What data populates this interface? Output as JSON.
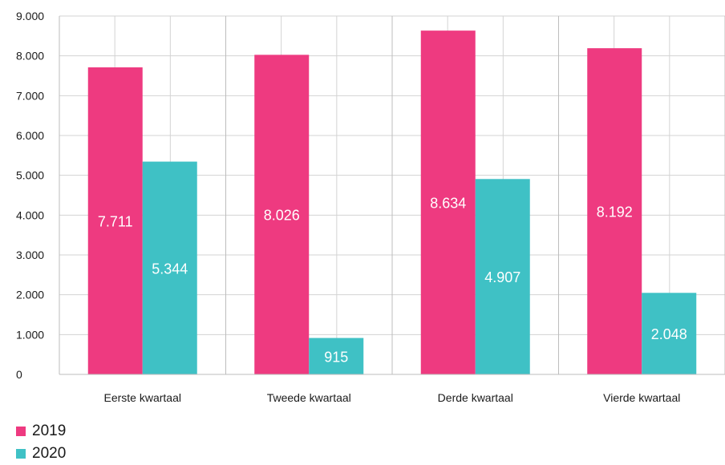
{
  "chart_data": {
    "type": "bar",
    "categories": [
      "Eerste kwartaal",
      "Tweede kwartaal",
      "Derde kwartaal",
      "Vierde kwartaal"
    ],
    "series": [
      {
        "name": "2019",
        "values": [
          7711,
          8026,
          8634,
          8192
        ],
        "labels": [
          "7.711",
          "8.026",
          "8.634",
          "8.192"
        ],
        "color": "#ee3a80"
      },
      {
        "name": "2020",
        "values": [
          5344,
          915,
          4907,
          2048
        ],
        "labels": [
          "5.344",
          "915",
          "4.907",
          "2.048"
        ],
        "color": "#3fc1c5"
      }
    ],
    "yticks": [
      "0",
      "1.000",
      "2.000",
      "3.000",
      "4.000",
      "5.000",
      "6.000",
      "7.000",
      "8.000",
      "9.000"
    ],
    "ylim": [
      0,
      9000
    ],
    "grid": true,
    "legend": "bottom-left",
    "title": "",
    "xlabel": "",
    "ylabel": ""
  }
}
